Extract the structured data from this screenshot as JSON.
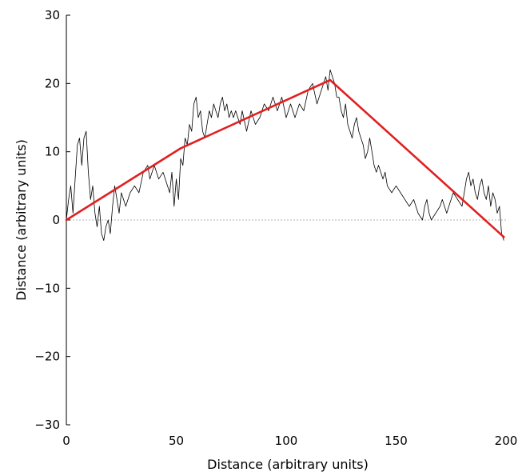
{
  "chart_data": {
    "type": "line",
    "title": "",
    "xlabel": "Distance (arbitrary units)",
    "ylabel": "Distance (arbitrary units)",
    "xlim": [
      0,
      200
    ],
    "ylim": [
      -30,
      30
    ],
    "x_ticks": [
      "0",
      "50",
      "100",
      "150",
      "200"
    ],
    "y_ticks": [
      "−30",
      "−20",
      "−10",
      "0",
      "10",
      "20",
      "30"
    ],
    "grid": false,
    "zero_line": true,
    "colors": {
      "path": "#000000",
      "trend": "#e02020",
      "zero_line": "#b0b0b0"
    },
    "series": [
      {
        "values": [
          [
            0,
            0
          ],
          [
            1,
            3
          ],
          [
            2,
            5
          ],
          [
            3,
            1
          ],
          [
            4,
            6
          ],
          [
            5,
            11
          ],
          [
            6,
            12
          ],
          [
            7,
            8
          ],
          [
            8,
            12
          ],
          [
            9,
            13
          ],
          [
            10,
            7
          ],
          [
            11,
            3
          ],
          [
            12,
            5
          ],
          [
            13,
            1
          ],
          [
            14,
            -1
          ],
          [
            15,
            2
          ],
          [
            16,
            -2
          ],
          [
            17,
            -3
          ],
          [
            18,
            -1
          ],
          [
            19,
            0
          ],
          [
            20,
            -2
          ],
          [
            21,
            2
          ],
          [
            22,
            5
          ],
          [
            23,
            3
          ],
          [
            24,
            1
          ],
          [
            25,
            4
          ],
          [
            27,
            2
          ],
          [
            29,
            4
          ],
          [
            31,
            5
          ],
          [
            33,
            4
          ],
          [
            35,
            7
          ],
          [
            37,
            8
          ],
          [
            38,
            6
          ],
          [
            40,
            8
          ],
          [
            42,
            6
          ],
          [
            44,
            7
          ],
          [
            46,
            5
          ],
          [
            47,
            4
          ],
          [
            48,
            7
          ],
          [
            49,
            2
          ],
          [
            50,
            6
          ],
          [
            51,
            3
          ],
          [
            52,
            9
          ],
          [
            53,
            8
          ],
          [
            54,
            12
          ],
          [
            55,
            11
          ],
          [
            56,
            14
          ],
          [
            57,
            13
          ],
          [
            58,
            17
          ],
          [
            59,
            18
          ],
          [
            60,
            15
          ],
          [
            61,
            16
          ],
          [
            62,
            13
          ],
          [
            63,
            12
          ],
          [
            64,
            14
          ],
          [
            65,
            16
          ],
          [
            66,
            15
          ],
          [
            67,
            17
          ],
          [
            68,
            16
          ],
          [
            69,
            15
          ],
          [
            70,
            17
          ],
          [
            71,
            18
          ],
          [
            72,
            16
          ],
          [
            73,
            17
          ],
          [
            74,
            15
          ],
          [
            75,
            16
          ],
          [
            76,
            15
          ],
          [
            77,
            16
          ],
          [
            78,
            15
          ],
          [
            79,
            14
          ],
          [
            80,
            16
          ],
          [
            82,
            13
          ],
          [
            84,
            16
          ],
          [
            86,
            14
          ],
          [
            88,
            15
          ],
          [
            90,
            17
          ],
          [
            92,
            16
          ],
          [
            94,
            18
          ],
          [
            96,
            16
          ],
          [
            98,
            18
          ],
          [
            100,
            15
          ],
          [
            102,
            17
          ],
          [
            104,
            15
          ],
          [
            106,
            17
          ],
          [
            108,
            16
          ],
          [
            110,
            19
          ],
          [
            112,
            20
          ],
          [
            114,
            17
          ],
          [
            116,
            19
          ],
          [
            118,
            21
          ],
          [
            119,
            19
          ],
          [
            120,
            22
          ],
          [
            121,
            21
          ],
          [
            122,
            20
          ],
          [
            123,
            18
          ],
          [
            124,
            18
          ],
          [
            125,
            16
          ],
          [
            126,
            15
          ],
          [
            127,
            17
          ],
          [
            128,
            14
          ],
          [
            129,
            13
          ],
          [
            130,
            12
          ],
          [
            131,
            14
          ],
          [
            132,
            15
          ],
          [
            133,
            13
          ],
          [
            134,
            12
          ],
          [
            135,
            11
          ],
          [
            136,
            9
          ],
          [
            137,
            10
          ],
          [
            138,
            12
          ],
          [
            139,
            10
          ],
          [
            140,
            8
          ],
          [
            141,
            7
          ],
          [
            142,
            8
          ],
          [
            143,
            7
          ],
          [
            144,
            6
          ],
          [
            145,
            7
          ],
          [
            146,
            5
          ],
          [
            148,
            4
          ],
          [
            150,
            5
          ],
          [
            152,
            4
          ],
          [
            154,
            3
          ],
          [
            156,
            2
          ],
          [
            158,
            3
          ],
          [
            160,
            1
          ],
          [
            162,
            0
          ],
          [
            163,
            2
          ],
          [
            164,
            3
          ],
          [
            165,
            1
          ],
          [
            166,
            0
          ],
          [
            168,
            1
          ],
          [
            170,
            2
          ],
          [
            171,
            3
          ],
          [
            172,
            2
          ],
          [
            173,
            1
          ],
          [
            174,
            2
          ],
          [
            176,
            4
          ],
          [
            178,
            3
          ],
          [
            180,
            2
          ],
          [
            182,
            6
          ],
          [
            183,
            7
          ],
          [
            184,
            5
          ],
          [
            185,
            6
          ],
          [
            186,
            4
          ],
          [
            187,
            3
          ],
          [
            188,
            5
          ],
          [
            189,
            6
          ],
          [
            190,
            4
          ],
          [
            191,
            3
          ],
          [
            192,
            5
          ],
          [
            193,
            2
          ],
          [
            194,
            4
          ],
          [
            195,
            3
          ],
          [
            196,
            1
          ],
          [
            197,
            2
          ],
          [
            198,
            -2
          ],
          [
            199,
            -3
          ]
        ]
      },
      {
        "values": [
          [
            0,
            0
          ],
          [
            52,
            10.5
          ],
          [
            120,
            20.5
          ],
          [
            199,
            -2.5
          ]
        ]
      }
    ]
  }
}
